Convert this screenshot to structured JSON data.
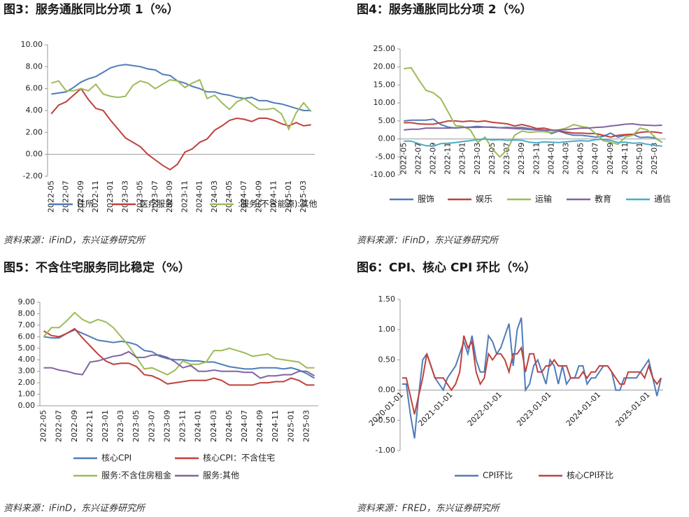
{
  "chart_data": [
    {
      "type": "line",
      "title": "图3：服务通胀同比分项 1（%）",
      "source": "资料来源：iFinD，东兴证券研究所",
      "categories": [
        "2022-05",
        null,
        "2022-07",
        null,
        "2022-09",
        null,
        "2022-11",
        null,
        "2023-01",
        null,
        "2023-03",
        null,
        "2023-05",
        null,
        "2023-07",
        null,
        "2023-09",
        null,
        "2023-11",
        null,
        "2024-01",
        null,
        "2024-03",
        null,
        "2024-05",
        null,
        "2024-07",
        null,
        "2024-09",
        null,
        "2024-11",
        null,
        "2025-01",
        null,
        "2025-03",
        null
      ],
      "ylim": [
        -2,
        10
      ],
      "yticks": [
        {
          "value": -2,
          "label": "-2.00"
        },
        {
          "value": 0,
          "label": "0.00"
        },
        {
          "value": 2,
          "label": "2.00"
        },
        {
          "value": 4,
          "label": "4.00"
        },
        {
          "value": 6,
          "label": "6.00"
        },
        {
          "value": 8,
          "label": "8.00"
        },
        {
          "value": 10,
          "label": "10.00"
        }
      ],
      "series": [
        {
          "name": "住所",
          "color": "#4f7cba",
          "values": [
            5.5,
            5.6,
            5.7,
            6.1,
            6.6,
            6.9,
            7.1,
            7.5,
            7.9,
            8.1,
            8.2,
            8.1,
            8.0,
            7.8,
            7.7,
            7.3,
            7.2,
            6.7,
            6.5,
            6.2,
            6.0,
            5.7,
            5.7,
            5.5,
            5.4,
            5.2,
            5.1,
            5.2,
            4.9,
            4.9,
            4.7,
            4.6,
            4.4,
            4.2,
            4.0,
            4.0
          ]
        },
        {
          "name": "医疗服务",
          "color": "#c0413c",
          "values": [
            3.7,
            4.5,
            4.8,
            5.4,
            6.0,
            5.0,
            4.2,
            4.0,
            3.1,
            2.3,
            1.5,
            1.1,
            0.7,
            0.0,
            -0.5,
            -1.0,
            -1.4,
            -0.9,
            0.2,
            0.5,
            1.1,
            1.4,
            2.2,
            2.6,
            3.1,
            3.3,
            3.2,
            3.0,
            3.3,
            3.3,
            3.1,
            2.8,
            2.6,
            2.9,
            2.6,
            2.7
          ]
        },
        {
          "name": ":服务(不含能源):其他",
          "color": "#9dbb59",
          "values": [
            6.5,
            6.7,
            5.8,
            5.8,
            6.0,
            5.8,
            6.4,
            5.5,
            5.3,
            5.2,
            5.3,
            6.3,
            6.7,
            6.5,
            6.0,
            6.4,
            6.8,
            6.7,
            6.1,
            6.5,
            6.8,
            5.1,
            5.4,
            4.7,
            4.1,
            4.8,
            5.1,
            4.6,
            4.1,
            4.1,
            4.2,
            3.7,
            2.3,
            3.8,
            4.7,
            3.9
          ]
        }
      ]
    },
    {
      "type": "line",
      "title": "图4：服务通胀同比分项 2（%）",
      "source": "资料来源：iFinD，东兴证券研究所",
      "categories": [
        "2022-05",
        null,
        "2022-07",
        null,
        "2022-09",
        null,
        "2022-11",
        null,
        "2023-01",
        null,
        "2023-03",
        null,
        "2023-05",
        null,
        "2023-07",
        null,
        "2023-09",
        null,
        "2023-11",
        null,
        "2024-01",
        null,
        "2024-03",
        null,
        "2024-05",
        null,
        "2024-07",
        null,
        "2024-09",
        null,
        "2024-11",
        null,
        "2025-01",
        null,
        "2025-03",
        null
      ],
      "ylim": [
        -10,
        25
      ],
      "yticks": [
        {
          "value": -10,
          "label": "-10.00"
        },
        {
          "value": -5,
          "label": "-5.00"
        },
        {
          "value": 0,
          "label": "0.00"
        },
        {
          "value": 5,
          "label": "5.00"
        },
        {
          "value": 10,
          "label": "10.00"
        },
        {
          "value": 15,
          "label": "15.00"
        },
        {
          "value": 20,
          "label": "20.00"
        },
        {
          "value": 25,
          "label": "25.00"
        }
      ],
      "series": [
        {
          "name": "服饰",
          "color": "#4f7cba",
          "values": [
            5.0,
            5.2,
            5.2,
            5.2,
            5.5,
            4.0,
            3.3,
            3.0,
            3.2,
            3.3,
            3.5,
            3.3,
            3.3,
            3.1,
            3.2,
            3.1,
            3.2,
            2.9,
            2.6,
            2.5,
            1.5,
            2.2,
            1.5,
            1.0,
            1.0,
            0.8,
            0.5,
            0.7,
            1.6,
            0.5,
            1.0,
            1.3,
            0.4,
            0.5,
            0.3,
            -1.0
          ]
        },
        {
          "name": "娱乐",
          "color": "#c0413c",
          "values": [
            4.5,
            4.5,
            4.2,
            4.1,
            4.1,
            4.5,
            5.0,
            5.0,
            4.8,
            5.0,
            4.8,
            5.0,
            4.6,
            4.4,
            4.2,
            3.6,
            4.0,
            3.5,
            2.9,
            3.0,
            2.5,
            2.2,
            1.9,
            1.6,
            1.6,
            1.5,
            1.5,
            1.0,
            0.5,
            1.0,
            1.2,
            1.3,
            1.8,
            2.0,
            1.9,
            1.6
          ]
        },
        {
          "name": "运输",
          "color": "#9dbb59",
          "values": [
            19.5,
            19.8,
            16.5,
            13.5,
            12.8,
            11.2,
            7.5,
            3.7,
            3.5,
            2.5,
            -1.0,
            0.5,
            -2.8,
            -5.0,
            -3.0,
            1.0,
            2.2,
            1.8,
            2.0,
            2.0,
            1.8,
            2.5,
            3.0,
            4.0,
            3.5,
            3.1,
            1.5,
            -0.5,
            -0.9,
            -1.5,
            0.5,
            1.0,
            3.0,
            2.5,
            0.5,
            -1.0
          ]
        },
        {
          "name": "教育",
          "color": "#8064a2",
          "values": [
            2.5,
            2.7,
            2.7,
            3.0,
            3.0,
            3.0,
            3.0,
            3.1,
            3.2,
            3.2,
            3.2,
            3.3,
            3.2,
            3.1,
            3.0,
            2.9,
            2.8,
            2.6,
            2.5,
            2.4,
            2.4,
            2.5,
            2.6,
            2.8,
            3.0,
            3.0,
            3.2,
            3.3,
            3.6,
            3.8,
            4.1,
            4.2,
            3.9,
            3.8,
            3.7,
            3.8
          ]
        },
        {
          "name": "通信",
          "color": "#4bacc6",
          "values": [
            -0.6,
            -0.6,
            -1.3,
            -1.9,
            -2.0,
            -1.3,
            -1.2,
            -1.0,
            -0.7,
            -0.5,
            -0.2,
            0.0,
            -0.3,
            -0.2,
            -0.4,
            -0.3,
            -0.4,
            -0.9,
            -1.1,
            -0.8,
            -0.9,
            -1.0,
            -0.8,
            -0.6,
            -0.5,
            -0.6,
            -0.2,
            -0.1,
            -0.4,
            -1.0,
            -0.9,
            -1.2,
            -1.1,
            -1.5,
            -1.8,
            -2.0
          ]
        }
      ]
    },
    {
      "type": "line",
      "title": "图5：不含住宅服务同比稳定（%）",
      "source": "资料来源：iFinD，东兴证券研究所",
      "categories": [
        "2022-05",
        null,
        "2022-07",
        null,
        "2022-09",
        null,
        "2022-11",
        null,
        "2023-01",
        null,
        "2023-03",
        null,
        "2023-05",
        null,
        "2023-07",
        null,
        "2023-09",
        null,
        "2023-11",
        null,
        "2024-01",
        null,
        "2024-03",
        null,
        "2024-05",
        null,
        "2024-07",
        null,
        "2024-09",
        null,
        "2024-11",
        null,
        "2025-01",
        null,
        "2025-03",
        null
      ],
      "ylim": [
        0,
        9
      ],
      "yticks": [
        {
          "value": 0,
          "label": "0.00"
        },
        {
          "value": 1,
          "label": "1.00"
        },
        {
          "value": 2,
          "label": "2.00"
        },
        {
          "value": 3,
          "label": "3.00"
        },
        {
          "value": 4,
          "label": "4.00"
        },
        {
          "value": 5,
          "label": "5.00"
        },
        {
          "value": 6,
          "label": "6.00"
        },
        {
          "value": 7,
          "label": "7.00"
        },
        {
          "value": 8,
          "label": "8.00"
        },
        {
          "value": 9,
          "label": "9.00"
        }
      ],
      "series": [
        {
          "name": "核心CPI",
          "color": "#4f7cba",
          "values": [
            6.0,
            5.9,
            5.9,
            6.3,
            6.6,
            6.3,
            6.0,
            5.7,
            5.6,
            5.5,
            5.6,
            5.5,
            5.3,
            4.8,
            4.7,
            4.3,
            4.1,
            4.0,
            4.0,
            3.9,
            3.9,
            3.8,
            3.8,
            3.6,
            3.4,
            3.3,
            3.2,
            3.2,
            3.3,
            3.3,
            3.3,
            3.2,
            3.3,
            3.1,
            2.8,
            2.4
          ]
        },
        {
          "name": "核心CPI：不含住宅",
          "color": "#c0413c",
          "values": [
            6.5,
            6.1,
            6.0,
            6.3,
            6.7,
            5.9,
            5.2,
            4.5,
            3.9,
            3.6,
            3.7,
            3.7,
            3.4,
            2.7,
            2.6,
            2.3,
            1.9,
            2.0,
            2.1,
            2.2,
            2.2,
            2.2,
            2.4,
            2.2,
            1.8,
            1.8,
            1.8,
            1.8,
            2.0,
            2.0,
            2.1,
            2.1,
            2.4,
            2.2,
            1.8,
            1.8
          ]
        },
        {
          "name": "服务:不含住房租金",
          "color": "#9dbb59",
          "values": [
            6.0,
            6.8,
            6.8,
            7.4,
            8.1,
            7.5,
            7.2,
            7.5,
            7.3,
            6.8,
            6.0,
            5.2,
            4.2,
            3.2,
            3.3,
            3.0,
            2.7,
            3.1,
            3.9,
            3.6,
            3.6,
            3.8,
            4.8,
            4.8,
            5.0,
            4.8,
            4.6,
            4.3,
            4.4,
            4.5,
            4.1,
            4.0,
            3.9,
            3.8,
            3.3,
            3.3
          ]
        },
        {
          "name": "服务:其他",
          "color": "#8064a2",
          "values": [
            3.3,
            3.3,
            3.1,
            3.0,
            2.8,
            2.7,
            3.8,
            3.9,
            4.1,
            4.3,
            4.4,
            4.7,
            4.2,
            4.2,
            4.4,
            4.4,
            4.2,
            3.8,
            3.3,
            3.5,
            3.0,
            3.0,
            3.1,
            3.0,
            3.0,
            3.0,
            2.9,
            2.9,
            2.4,
            2.6,
            2.6,
            2.7,
            2.7,
            3.0,
            3.0,
            2.6
          ]
        }
      ]
    },
    {
      "type": "line",
      "title": "图6：CPI、核心 CPI 环比（%）",
      "source": "资料来源：FRED，东兴证券研究所",
      "categories": [
        "2020-01-01",
        null,
        null,
        null,
        null,
        null,
        null,
        null,
        null,
        null,
        null,
        null,
        "2021-01-01",
        null,
        null,
        null,
        null,
        null,
        null,
        null,
        null,
        null,
        null,
        null,
        "2022-01-01",
        null,
        null,
        null,
        null,
        null,
        null,
        null,
        null,
        null,
        null,
        null,
        "2023-01-01",
        null,
        null,
        null,
        null,
        null,
        null,
        null,
        null,
        null,
        null,
        null,
        "2024-01-01",
        null,
        null,
        null,
        null,
        null,
        null,
        null,
        null,
        null,
        null,
        null,
        "2025-01-01",
        null,
        null,
        null
      ],
      "ylim": [
        -1,
        1.5
      ],
      "yticks": [
        {
          "value": -1,
          "label": "-1.00"
        },
        {
          "value": -0.5,
          "label": "-0.50"
        },
        {
          "value": 0,
          "label": "0.00"
        },
        {
          "value": 0.5,
          "label": "0.50"
        },
        {
          "value": 1,
          "label": "1.00"
        },
        {
          "value": 1.5,
          "label": "1.50"
        }
      ],
      "series": [
        {
          "name": "CPI环比",
          "color": "#4f7cba",
          "values": [
            0.1,
            0.1,
            -0.4,
            -0.8,
            -0.1,
            0.5,
            0.6,
            0.4,
            0.2,
            0.1,
            0.0,
            0.2,
            0.3,
            0.4,
            0.6,
            0.8,
            0.6,
            0.9,
            0.5,
            0.3,
            0.3,
            0.9,
            0.8,
            0.6,
            0.7,
            0.9,
            1.1,
            0.4,
            1.0,
            1.2,
            0.0,
            0.1,
            0.4,
            0.5,
            0.3,
            0.1,
            0.5,
            0.4,
            0.1,
            0.4,
            0.1,
            0.2,
            0.2,
            0.4,
            0.4,
            0.1,
            0.2,
            0.2,
            0.3,
            0.4,
            0.4,
            0.3,
            0.0,
            0.0,
            0.2,
            0.2,
            0.2,
            0.2,
            0.3,
            0.4,
            0.5,
            0.2,
            -0.1,
            0.2
          ]
        },
        {
          "name": "核心CPI环比",
          "color": "#c0413c",
          "values": [
            0.2,
            0.2,
            -0.1,
            -0.4,
            -0.1,
            0.2,
            0.6,
            0.4,
            0.2,
            0.2,
            0.2,
            0.1,
            0.0,
            0.1,
            0.3,
            0.9,
            0.7,
            0.8,
            0.3,
            0.1,
            0.2,
            0.6,
            0.5,
            0.6,
            0.6,
            0.5,
            0.3,
            0.6,
            0.6,
            0.7,
            0.3,
            0.6,
            0.6,
            0.3,
            0.3,
            0.4,
            0.4,
            0.5,
            0.4,
            0.4,
            0.4,
            0.2,
            0.2,
            0.2,
            0.3,
            0.2,
            0.3,
            0.3,
            0.4,
            0.4,
            0.4,
            0.3,
            0.2,
            0.1,
            0.1,
            0.3,
            0.3,
            0.3,
            0.3,
            0.2,
            0.4,
            0.2,
            0.1,
            0.2
          ]
        }
      ]
    }
  ]
}
